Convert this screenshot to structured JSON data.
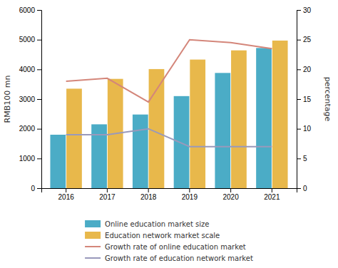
{
  "chart_data": {
    "type": "bar",
    "categories": [
      "2016",
      "2017",
      "2018",
      "2019",
      "2020",
      "2021"
    ],
    "ylabel": "RMB100 mn",
    "y2label": "percentage",
    "ylim": [
      0,
      6000
    ],
    "yticks": [
      0,
      1000,
      2000,
      3000,
      4000,
      5000,
      6000
    ],
    "y2lim": [
      0,
      30
    ],
    "y2ticks": [
      0,
      5,
      10,
      15,
      20,
      25,
      30
    ],
    "grid": false,
    "legend": "bottom",
    "series": [
      {
        "name": "Online education market size",
        "type": "bar",
        "color": "#4bacc6",
        "values": [
          1800,
          2150,
          2480,
          3100,
          3880,
          4720
        ]
      },
      {
        "name": "Education network market scale",
        "type": "bar",
        "color": "#e8b84b",
        "values": [
          3350,
          3680,
          4010,
          4330,
          4640,
          4970
        ]
      },
      {
        "name": "Growth rate of online education market",
        "type": "line",
        "axis": "y2",
        "color": "#d4867a",
        "values": [
          18,
          18.5,
          14.5,
          25,
          24.5,
          23.5
        ]
      },
      {
        "name": "Growth rate of education network market",
        "type": "line",
        "axis": "y2",
        "color": "#9999bb",
        "values": [
          9,
          9,
          10,
          7,
          7,
          7
        ]
      }
    ]
  }
}
